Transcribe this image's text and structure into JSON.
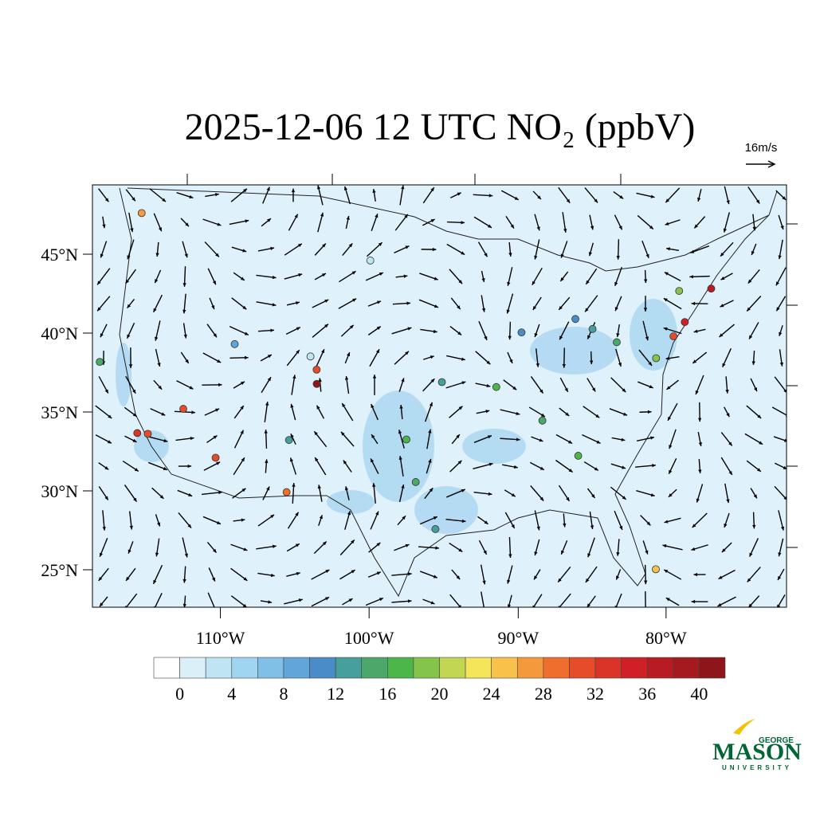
{
  "title": "2025-12-06 12 UTC NO₂ (ppbV)",
  "wind_scale_label": "16m/s",
  "map": {
    "lat_ticks": [
      {
        "value": 45,
        "label": "45°N"
      },
      {
        "value": 40,
        "label": "40°N"
      },
      {
        "value": 35,
        "label": "35°N"
      },
      {
        "value": 30,
        "label": "30°N"
      },
      {
        "value": 25,
        "label": "25°N"
      }
    ],
    "lon_ticks": [
      {
        "value": -110,
        "label": "110°W"
      },
      {
        "value": -100,
        "label": "100°W"
      },
      {
        "value": -90,
        "label": "90°W"
      },
      {
        "value": -80,
        "label": "80°W"
      }
    ],
    "stations": [
      {
        "lon": -118.2,
        "lat": 34.0,
        "value": 32
      },
      {
        "lon": -117.4,
        "lat": 34.1,
        "value": 30
      },
      {
        "lon": -104.9,
        "lat": 39.7,
        "value": 30
      },
      {
        "lon": -104.8,
        "lat": 38.8,
        "value": 40
      },
      {
        "lon": -74.0,
        "lat": 40.7,
        "value": 34
      },
      {
        "lon": -71.1,
        "lat": 42.3,
        "value": 36
      },
      {
        "lon": -75.2,
        "lat": 40.0,
        "value": 30
      },
      {
        "lon": -77.0,
        "lat": 38.9,
        "value": 18
      },
      {
        "lon": -111.9,
        "lat": 40.7,
        "value": 8
      },
      {
        "lon": -122.3,
        "lat": 47.6,
        "value": 26
      },
      {
        "lon": -112.0,
        "lat": 33.4,
        "value": 30
      },
      {
        "lon": -87.7,
        "lat": 41.9,
        "value": 10
      },
      {
        "lon": -83.0,
        "lat": 42.3,
        "value": 10
      },
      {
        "lon": -84.4,
        "lat": 33.7,
        "value": 16
      },
      {
        "lon": -95.4,
        "lat": 29.8,
        "value": 12
      },
      {
        "lon": -96.8,
        "lat": 32.8,
        "value": 14
      },
      {
        "lon": -80.2,
        "lat": 25.8,
        "value": 24
      },
      {
        "lon": -115.1,
        "lat": 36.1,
        "value": 30
      },
      {
        "lon": -122.4,
        "lat": 37.8,
        "value": 14
      },
      {
        "lon": -106.6,
        "lat": 35.1,
        "value": 12
      },
      {
        "lon": -94.6,
        "lat": 39.1,
        "value": 12
      },
      {
        "lon": -90.2,
        "lat": 38.6,
        "value": 16
      },
      {
        "lon": -106.4,
        "lat": 31.8,
        "value": 28
      },
      {
        "lon": -100.8,
        "lat": 46.8,
        "value": 2
      },
      {
        "lon": -105.5,
        "lat": 40.5,
        "value": 2
      },
      {
        "lon": -97.5,
        "lat": 35.5,
        "value": 16
      },
      {
        "lon": -86.8,
        "lat": 36.2,
        "value": 14
      },
      {
        "lon": -81.7,
        "lat": 41.5,
        "value": 12
      },
      {
        "lon": -79.9,
        "lat": 40.4,
        "value": 14
      },
      {
        "lon": -73.8,
        "lat": 42.7,
        "value": 18
      }
    ]
  },
  "colorbar": {
    "colors": [
      "#ffffff",
      "#dbeff9",
      "#bfe4f4",
      "#9fd5f0",
      "#80bfe6",
      "#62a5d9",
      "#4a8cc8",
      "#469f9a",
      "#4ca76a",
      "#4cb64b",
      "#85c44a",
      "#c2d654",
      "#f5e55b",
      "#f8c24a",
      "#f59a3c",
      "#ef6e2d",
      "#e64b2a",
      "#da3429",
      "#cf2028",
      "#b81c22",
      "#a51a1f",
      "#8e161a"
    ],
    "ticks": [
      0,
      4,
      8,
      12,
      16,
      20,
      24,
      28,
      32,
      36,
      40
    ]
  },
  "logo": {
    "top": "GEORGE",
    "main": "MASON",
    "bottom": "UNIVERSITY"
  }
}
